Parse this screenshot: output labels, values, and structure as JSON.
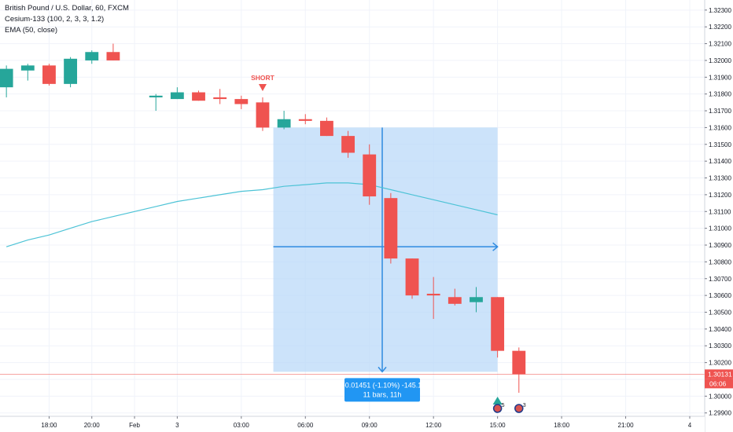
{
  "legend": {
    "symbol": "British Pound / U.S. Dollar, 60, FXCM",
    "indicator1": "Cesium-133 (100, 2, 3, 3, 1.2)",
    "indicator2": "EMA (50, close)"
  },
  "signal_label": "SHORT",
  "measure": {
    "line1": "-0.01451 (-1.10%) -145.1",
    "line2": "11 bars, 11h"
  },
  "price_badge": {
    "price": "1.30131",
    "countdown": "06:06"
  },
  "event_counts": [
    "5",
    "3"
  ],
  "colors": {
    "up": "#26a69a",
    "down": "#ef5350",
    "ema": "#4dc3d6",
    "measure_fill": "#bbd9f8",
    "measure_line": "#2f8be0",
    "label_bg": "#2196f3",
    "price_line": "#ef5350"
  },
  "chart_data": {
    "type": "candlestick",
    "y_ticks": [
      "1.32300",
      "1.32200",
      "1.32100",
      "1.32000",
      "1.31900",
      "1.31800",
      "1.31700",
      "1.31600",
      "1.31500",
      "1.31400",
      "1.31300",
      "1.31200",
      "1.31100",
      "1.31000",
      "1.30900",
      "1.30800",
      "1.30700",
      "1.30600",
      "1.30500",
      "1.30400",
      "1.30300",
      "1.30200",
      "1.30100",
      "1.30000",
      "1.29900"
    ],
    "ylim": [
      1.2988,
      1.3236
    ],
    "x_ticks": [
      {
        "label": "18:00",
        "bar": -4
      },
      {
        "label": "20:00",
        "bar": -2
      },
      {
        "label": "Feb",
        "bar": 0
      },
      {
        "label": "3",
        "bar": 2
      },
      {
        "label": "03:00",
        "bar": 5
      },
      {
        "label": "06:00",
        "bar": 8
      },
      {
        "label": "09:00",
        "bar": 11
      },
      {
        "label": "12:00",
        "bar": 14
      },
      {
        "label": "15:00",
        "bar": 17
      },
      {
        "label": "18:00",
        "bar": 20
      },
      {
        "label": "21:00",
        "bar": 23
      },
      {
        "label": "4",
        "bar": 26
      }
    ],
    "x_range": [
      -6.3,
      26.7
    ],
    "candles": [
      {
        "bar": -6,
        "o": 1.3184,
        "h": 1.3197,
        "l": 1.3178,
        "c": 1.3195
      },
      {
        "bar": -5,
        "o": 1.3194,
        "h": 1.3198,
        "l": 1.3188,
        "c": 1.3197
      },
      {
        "bar": -4,
        "o": 1.3197,
        "h": 1.3198,
        "l": 1.3185,
        "c": 1.3186
      },
      {
        "bar": -3,
        "o": 1.3186,
        "h": 1.3202,
        "l": 1.3184,
        "c": 1.3201
      },
      {
        "bar": -2,
        "o": 1.32,
        "h": 1.3206,
        "l": 1.3198,
        "c": 1.3205
      },
      {
        "bar": -1,
        "o": 1.3205,
        "h": 1.321,
        "l": 1.32,
        "c": 1.32
      },
      {
        "bar": 1,
        "o": 1.3178,
        "h": 1.318,
        "l": 1.317,
        "c": 1.3179
      },
      {
        "bar": 2,
        "o": 1.3177,
        "h": 1.3184,
        "l": 1.3177,
        "c": 1.3181
      },
      {
        "bar": 3,
        "o": 1.3181,
        "h": 1.3182,
        "l": 1.3176,
        "c": 1.3176
      },
      {
        "bar": 4,
        "o": 1.3178,
        "h": 1.3183,
        "l": 1.3174,
        "c": 1.3177
      },
      {
        "bar": 5,
        "o": 1.3177,
        "h": 1.3179,
        "l": 1.3171,
        "c": 1.3174
      },
      {
        "bar": 6,
        "o": 1.3175,
        "h": 1.3178,
        "l": 1.3158,
        "c": 1.316
      },
      {
        "bar": 7,
        "o": 1.316,
        "h": 1.317,
        "l": 1.3159,
        "c": 1.3165
      },
      {
        "bar": 8,
        "o": 1.3165,
        "h": 1.3168,
        "l": 1.3162,
        "c": 1.3164
      },
      {
        "bar": 9,
        "o": 1.3164,
        "h": 1.3166,
        "l": 1.3155,
        "c": 1.3155
      },
      {
        "bar": 10,
        "o": 1.3155,
        "h": 1.3158,
        "l": 1.3142,
        "c": 1.3145
      },
      {
        "bar": 11,
        "o": 1.3144,
        "h": 1.315,
        "l": 1.3114,
        "c": 1.3119
      },
      {
        "bar": 12,
        "o": 1.3118,
        "h": 1.3121,
        "l": 1.3079,
        "c": 1.3082
      },
      {
        "bar": 13,
        "o": 1.3082,
        "h": 1.3082,
        "l": 1.3058,
        "c": 1.306
      },
      {
        "bar": 14,
        "o": 1.3061,
        "h": 1.3071,
        "l": 1.3046,
        "c": 1.306
      },
      {
        "bar": 15,
        "o": 1.3059,
        "h": 1.3064,
        "l": 1.3054,
        "c": 1.3055
      },
      {
        "bar": 16,
        "o": 1.3056,
        "h": 1.3065,
        "l": 1.305,
        "c": 1.3059
      },
      {
        "bar": 17,
        "o": 1.3059,
        "h": 1.3059,
        "l": 1.3023,
        "c": 1.3027
      },
      {
        "bar": 18,
        "o": 1.3027,
        "h": 1.3029,
        "l": 1.3002,
        "c": 1.3013
      }
    ],
    "ema": [
      [
        -6,
        1.3089
      ],
      [
        -5,
        1.3093
      ],
      [
        -4,
        1.3096
      ],
      [
        -3,
        1.31
      ],
      [
        -2,
        1.3104
      ],
      [
        -1,
        1.3107
      ],
      [
        0,
        1.311
      ],
      [
        1,
        1.3113
      ],
      [
        2,
        1.3116
      ],
      [
        3,
        1.3118
      ],
      [
        4,
        1.312
      ],
      [
        5,
        1.3122
      ],
      [
        6,
        1.3123
      ],
      [
        7,
        1.3125
      ],
      [
        8,
        1.3126
      ],
      [
        9,
        1.3127
      ],
      [
        10,
        1.3127
      ],
      [
        11,
        1.3126
      ],
      [
        12,
        1.3123
      ],
      [
        13,
        1.312
      ],
      [
        14,
        1.3117
      ],
      [
        15,
        1.3114
      ],
      [
        16,
        1.3111
      ],
      [
        17,
        1.3108
      ]
    ],
    "measure": {
      "bar_start": 7,
      "bar_end": 17,
      "price_top": 1.316,
      "price_bottom": 1.30145,
      "price_mid": 1.3089,
      "bar_mid": 11.6
    },
    "signal_bar": 6,
    "last_price": 1.30131
  }
}
